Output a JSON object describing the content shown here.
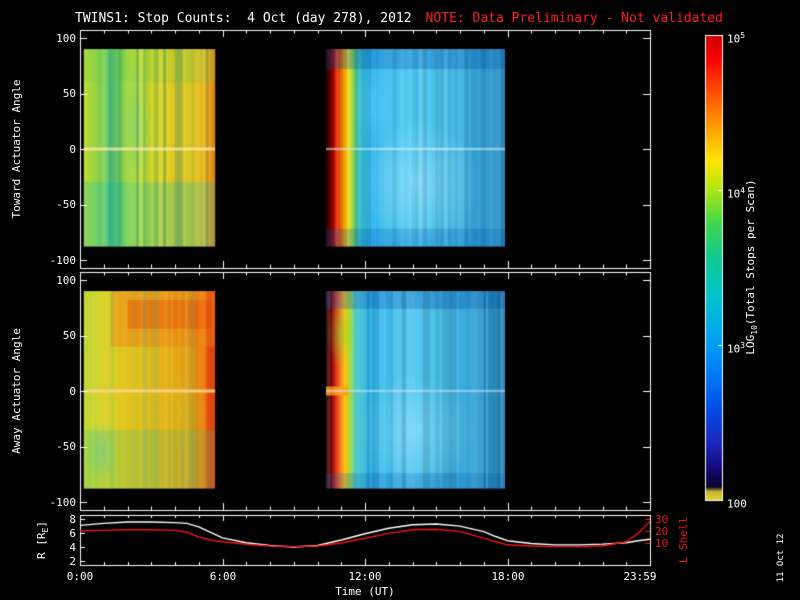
{
  "header": {
    "title": "TWINS1: Stop Counts:  4 Oct (day 278), 2012",
    "note": "NOTE: Data Preliminary - Not validated"
  },
  "date_stamp": "11 Oct 12",
  "colors": {
    "background": "#000000",
    "axis": "#ffffff",
    "note_red": "#ff1c1c",
    "l_shell_red": "#f21414"
  },
  "chart_data": {
    "type": "heatmap",
    "title": "TWINS1: Stop Counts:  4 Oct (day 278), 2012",
    "note": "NOTE: Data Preliminary - Not validated",
    "xlabel": "Time (UT)",
    "x_range_hours": [
      0,
      24
    ],
    "x_ticks": [
      {
        "hour": 0,
        "label": "0:00"
      },
      {
        "hour": 6,
        "label": "6:00"
      },
      {
        "hour": 12,
        "label": "12:00"
      },
      {
        "hour": 18,
        "label": "18:00"
      },
      {
        "hour": 24,
        "label": "23:59"
      }
    ],
    "panels": [
      {
        "name": "toward",
        "ylabel": "Toward Actuator Angle",
        "ylim": [
          -100,
          100
        ],
        "y_ticks": [
          100,
          50,
          0,
          -50,
          -100
        ],
        "blocks": [
          {
            "t_range": [
              0.15,
              5.7
            ],
            "angle_range": [
              90,
              -88
            ],
            "h_stops": [
              [
                0,
                "#bcdc34"
              ],
              [
                0.1,
                "#94d444"
              ],
              [
                0.2,
                "#58c878"
              ],
              [
                0.3,
                "#84d048"
              ],
              [
                0.42,
                "#c0dc2c"
              ],
              [
                0.55,
                "#d8d824"
              ],
              [
                0.68,
                "#e0c820"
              ],
              [
                0.8,
                "#e0cc24"
              ],
              [
                0.92,
                "#e8b01c"
              ],
              [
                1,
                "#e87c10"
              ]
            ],
            "overlays": [
              {
                "shape": "rect",
                "t": [
                  0.15,
                  5.7
                ],
                "a": [
                  -30,
                  -88
                ],
                "color": "#00c0d0",
                "alpha": 0.25
              },
              {
                "shape": "rect",
                "t": [
                  0.15,
                  5.7
                ],
                "a": [
                  90,
                  60
                ],
                "color": "#60cc50",
                "alpha": 0.2
              },
              {
                "shape": "blob",
                "ct": 2.4,
                "ca": 20,
                "rt": 0.6,
                "ra": 60,
                "color": "#30c8c8",
                "alpha": 0.35
              }
            ],
            "stripes": {
              "amplitude": 0.28,
              "min_width": 2,
              "max_width": 5,
              "seed": 11,
              "colors": [
                "#f8f060",
                "#00687f"
              ]
            },
            "zero_line": {
              "color": "#ffe8a8",
              "alpha": 0.75,
              "half_width": 1.5
            }
          },
          {
            "t_range": [
              10.35,
              17.9
            ],
            "angle_range": [
              90,
              -88
            ],
            "h_stops": [
              [
                0,
                "#200000"
              ],
              [
                0.015,
                "#4c0000"
              ],
              [
                0.035,
                "#8c0000"
              ],
              [
                0.055,
                "#d81800"
              ],
              [
                0.08,
                "#ff6000"
              ],
              [
                0.105,
                "#ffb400"
              ],
              [
                0.13,
                "#e8e020"
              ],
              [
                0.155,
                "#84d858"
              ],
              [
                0.185,
                "#38c4cc"
              ],
              [
                0.25,
                "#2cb4ec"
              ],
              [
                0.4,
                "#48c4f0"
              ],
              [
                0.55,
                "#54ccf4"
              ],
              [
                0.7,
                "#44bce8"
              ],
              [
                0.85,
                "#34a4d8"
              ],
              [
                1,
                "#2c90c4"
              ]
            ],
            "overlays": [
              {
                "shape": "rect",
                "t": [
                  10.35,
                  17.9
                ],
                "a": [
                  90,
                  72
                ],
                "color": "#0050b0",
                "alpha": 0.3
              },
              {
                "shape": "rect",
                "t": [
                  10.35,
                  17.9
                ],
                "a": [
                  -72,
                  -88
                ],
                "color": "#0058b8",
                "alpha": 0.25
              },
              {
                "shape": "blob",
                "ct": 14.3,
                "ca": -30,
                "rt": 2.6,
                "ra": 55,
                "color": "#c0f0ff",
                "alpha": 0.4
              },
              {
                "shape": "blob",
                "ct": 12.3,
                "ca": 40,
                "rt": 0.8,
                "ra": 40,
                "color": "#80e0f8",
                "alpha": 0.25
              }
            ],
            "stripes": {
              "amplitude": 0.1,
              "min_width": 2,
              "max_width": 5,
              "seed": 23,
              "colors": [
                "#ffffff",
                "#000000"
              ]
            },
            "zero_line": {
              "color": "#d8f4ff",
              "alpha": 0.55,
              "half_width": 1.2
            }
          }
        ]
      },
      {
        "name": "away",
        "ylabel": "Away Actuator Angle",
        "ylim": [
          -100,
          100
        ],
        "y_ticks": [
          100,
          50,
          0,
          -50,
          -100
        ],
        "blocks": [
          {
            "t_range": [
              0.15,
              5.7
            ],
            "angle_range": [
              90,
              -88
            ],
            "h_stops": [
              [
                0,
                "#b0d838"
              ],
              [
                0.1,
                "#ccd82c"
              ],
              [
                0.22,
                "#dcd024"
              ],
              [
                0.35,
                "#e0c41c"
              ],
              [
                0.5,
                "#e4bc1c"
              ],
              [
                0.65,
                "#e8ac14"
              ],
              [
                0.8,
                "#e89c10"
              ],
              [
                0.9,
                "#e8780c"
              ],
              [
                0.965,
                "#e83c04"
              ],
              [
                1,
                "#d81800"
              ]
            ],
            "overlays": [
              {
                "shape": "rect",
                "t": [
                  1.3,
                  5.7
                ],
                "a": [
                  90,
                  40
                ],
                "color": "#f07814",
                "alpha": 0.45
              },
              {
                "shape": "rect",
                "t": [
                  2.0,
                  5.55
                ],
                "a": [
                  82,
                  56
                ],
                "color": "#e84008",
                "alpha": 0.4
              },
              {
                "shape": "rect",
                "t": [
                  0.15,
                  5.7
                ],
                "a": [
                  -35,
                  -88
                ],
                "color": "#2cc488",
                "alpha": 0.22
              },
              {
                "shape": "blob",
                "ct": 0.9,
                "ca": -55,
                "rt": 0.7,
                "ra": 30,
                "color": "#2cc8d4",
                "alpha": 0.4
              },
              {
                "shape": "blob",
                "ct": 4.3,
                "ca": -20,
                "rt": 1.2,
                "ra": 35,
                "color": "#a8d830",
                "alpha": 0.25
              }
            ],
            "stripes": {
              "amplitude": 0.24,
              "min_width": 2,
              "max_width": 5,
              "seed": 37,
              "colors": [
                "#ffd040",
                "#30b890"
              ]
            },
            "zero_line": {
              "color": "#ffd488",
              "alpha": 0.85,
              "half_width": 1.6
            }
          },
          {
            "t_range": [
              10.35,
              17.9
            ],
            "angle_range": [
              90,
              -88
            ],
            "h_stops": [
              [
                0,
                "#1c0000"
              ],
              [
                0.015,
                "#480000"
              ],
              [
                0.035,
                "#880000"
              ],
              [
                0.055,
                "#d01400"
              ],
              [
                0.08,
                "#f86800"
              ],
              [
                0.105,
                "#ffc000"
              ],
              [
                0.135,
                "#a8dc38"
              ],
              [
                0.17,
                "#40c4cc"
              ],
              [
                0.25,
                "#30b4e8"
              ],
              [
                0.42,
                "#4cc4f0"
              ],
              [
                0.58,
                "#50c8f0"
              ],
              [
                0.72,
                "#40b4e4"
              ],
              [
                0.86,
                "#309cd0"
              ],
              [
                1,
                "#2888bc"
              ]
            ],
            "overlays": [
              {
                "shape": "blob",
                "ct": 10.95,
                "ca": 52,
                "rt": 0.55,
                "ra": 32,
                "color": "#48e81c",
                "alpha": 0.45
              },
              {
                "shape": "rect",
                "t": [
                  10.35,
                  11.3
                ],
                "a": [
                  4,
                  -4
                ],
                "color": "#ff9800",
                "alpha": 0.85
              },
              {
                "shape": "rect",
                "t": [
                  10.35,
                  17.9
                ],
                "a": [
                  90,
                  74
                ],
                "color": "#004cac",
                "alpha": 0.3
              },
              {
                "shape": "rect",
                "t": [
                  10.35,
                  17.9
                ],
                "a": [
                  -74,
                  -88
                ],
                "color": "#0054b0",
                "alpha": 0.25
              },
              {
                "shape": "blob",
                "ct": 14.2,
                "ca": -35,
                "rt": 2.4,
                "ra": 50,
                "color": "#b8eeff",
                "alpha": 0.38
              }
            ],
            "stripes": {
              "amplitude": 0.13,
              "min_width": 2,
              "max_width": 5,
              "seed": 53,
              "colors": [
                "#ffffff",
                "#000000"
              ]
            },
            "zero_line": {
              "color": "#cceeff",
              "alpha": 0.5,
              "half_width": 1.2
            }
          }
        ]
      }
    ],
    "colorbar": {
      "label_pre": "LOG",
      "label_sub": "10",
      "label_post": "(Total Stops per Scan)",
      "ticks": [
        {
          "pos": 0.0,
          "base": "10",
          "exp": "5"
        },
        {
          "pos": 0.333,
          "base": "10",
          "exp": "4"
        },
        {
          "pos": 0.667,
          "base": "10",
          "exp": "3"
        },
        {
          "pos": 1.0,
          "base": "100",
          "exp": ""
        }
      ],
      "gradient": [
        [
          0,
          "#c80000"
        ],
        [
          0.05,
          "#f80000"
        ],
        [
          0.12,
          "#ff4c00"
        ],
        [
          0.2,
          "#ffa000"
        ],
        [
          0.27,
          "#ffe400"
        ],
        [
          0.33,
          "#b0e810"
        ],
        [
          0.4,
          "#48d848"
        ],
        [
          0.48,
          "#10c890"
        ],
        [
          0.56,
          "#00c4cc"
        ],
        [
          0.64,
          "#00a8ec"
        ],
        [
          0.72,
          "#0080f8"
        ],
        [
          0.8,
          "#0050e8"
        ],
        [
          0.875,
          "#1c28c0"
        ],
        [
          0.93,
          "#140c78"
        ],
        [
          0.972,
          "#08042c"
        ],
        [
          0.982,
          "#c8b828"
        ],
        [
          1,
          "#e0d040"
        ]
      ]
    },
    "bottom_panel": {
      "left_axis": {
        "label_pre": "R [R",
        "label_sub": "E",
        "label_post": "]",
        "ticks": [
          8,
          6,
          4,
          2
        ],
        "ylim": [
          1.4,
          8.6
        ]
      },
      "right_axis": {
        "label": "L Shell",
        "ticks": [
          30,
          20,
          10
        ],
        "ylim": [
          -8.3,
          33.3
        ],
        "color": "#f21414"
      },
      "series": [
        {
          "name": "R",
          "axis": "left",
          "color": "#ffffff",
          "x": [
            0,
            1,
            2,
            3,
            4,
            4.5,
            5,
            5.5,
            6,
            7,
            8,
            9,
            10,
            11,
            12,
            13,
            14,
            15,
            16,
            17,
            17.5,
            18,
            19,
            20,
            21,
            22,
            23,
            23.5,
            24
          ],
          "y": [
            7.1,
            7.4,
            7.6,
            7.6,
            7.5,
            7.4,
            6.9,
            6.1,
            5.3,
            4.6,
            4.2,
            4.0,
            4.2,
            5.0,
            5.9,
            6.7,
            7.2,
            7.3,
            7.0,
            6.2,
            5.5,
            4.9,
            4.5,
            4.3,
            4.3,
            4.4,
            4.6,
            4.9,
            5.1
          ]
        },
        {
          "name": "L Shell",
          "axis": "right",
          "color": "#f21414",
          "x": [
            0,
            1,
            2,
            3,
            4,
            4.5,
            5,
            5.5,
            6,
            7,
            8,
            9,
            10,
            11,
            12,
            13,
            14,
            15,
            16,
            17,
            17.5,
            18,
            19,
            20,
            21,
            22,
            23,
            23.5,
            24
          ],
          "y": [
            20,
            20.5,
            21,
            21,
            20.5,
            19,
            15,
            12.5,
            11,
            9,
            7.5,
            7,
            7.5,
            10,
            14,
            18,
            21,
            21.5,
            19.5,
            14,
            11,
            8.5,
            7.5,
            7,
            7,
            7.5,
            11,
            18,
            28
          ]
        }
      ]
    }
  }
}
